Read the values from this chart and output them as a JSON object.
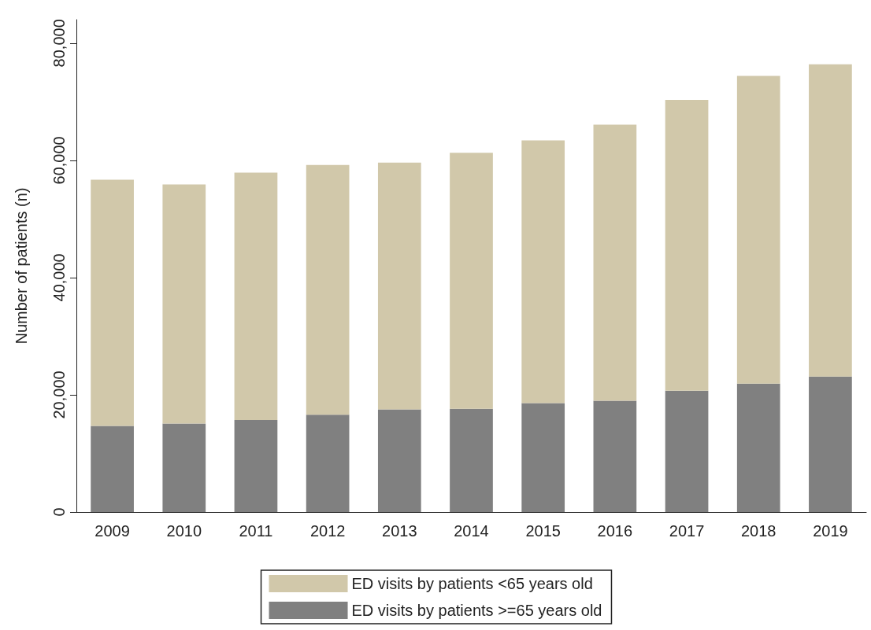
{
  "chart_data": {
    "type": "bar",
    "stacked": true,
    "ylabel": "Number of patients (n)",
    "categories": [
      "2009",
      "2010",
      "2011",
      "2012",
      "2013",
      "2014",
      "2015",
      "2016",
      "2017",
      "2018",
      "2019"
    ],
    "series": [
      {
        "name": "ED visits by patients >=65 years old",
        "color": "#808080",
        "values": [
          14700,
          15100,
          15700,
          16600,
          17500,
          17600,
          18600,
          19000,
          20700,
          21900,
          23100
        ]
      },
      {
        "name": "ED visits by patients <65 years old",
        "color": "#d1c8aa",
        "values": [
          42000,
          40800,
          42200,
          42600,
          42100,
          43700,
          44800,
          47100,
          49600,
          52500,
          53300
        ]
      }
    ],
    "ylim": [
      0,
      84000
    ],
    "yticks": [
      {
        "value": 0,
        "label": "0"
      },
      {
        "value": 20000,
        "label": "20,000"
      },
      {
        "value": 40000,
        "label": "40,000"
      },
      {
        "value": 60000,
        "label": "60,000"
      },
      {
        "value": 80000,
        "label": "80,000"
      }
    ],
    "grid": false,
    "legend": "bottom"
  }
}
